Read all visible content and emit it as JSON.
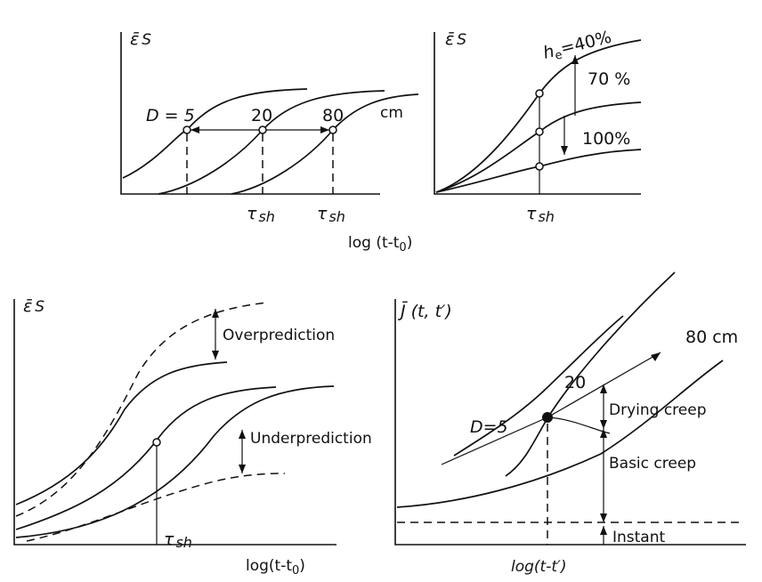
{
  "top_left": {
    "ylabel": "ε̄",
    "ylabel_sub": "S",
    "d_label": "D = 5",
    "d20": "20",
    "d80": "80",
    "unit": "cm",
    "tau1": "τ",
    "tau1_sub": "sh",
    "tau2": "τ",
    "tau2_sub": "sh"
  },
  "top_right": {
    "ylabel": "ε̄",
    "ylabel_sub": "S",
    "he_label": "h",
    "he_sub": "e",
    "he_value": "=40%",
    "l70": "70 %",
    "l100": "100%",
    "tau": "τ",
    "tau_sub": "sh"
  },
  "shared_xlabel": "log (t-t",
  "shared_xlabel_sub": "0",
  "shared_xlabel_end": ")",
  "bottom_left": {
    "ylabel": "ε̄",
    "ylabel_sub": "S",
    "over": "Overprediction",
    "under": "Underprediction",
    "tau": "τ",
    "tau_sub": "sh",
    "xlabel": "log(t-t",
    "xlabel_sub": "0",
    "xlabel_end": ")"
  },
  "bottom_right": {
    "ylabel": "J̄ (t, t′)",
    "d80": "80 cm",
    "d20": "20",
    "d5": "D=5",
    "drying": "Drying creep",
    "basic": "Basic creep",
    "instant": "Instant",
    "xlabel": "log(t-t′)"
  }
}
